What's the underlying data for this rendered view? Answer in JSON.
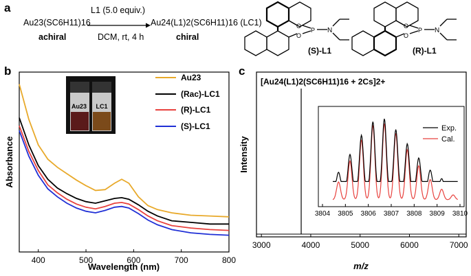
{
  "panel_labels": {
    "a": "a",
    "b": "b",
    "c": "c"
  },
  "reaction": {
    "reagent": "L1 (5.0 equiv.)",
    "conditions": "DCM, rt, 4 h",
    "reactant": "Au23(SC6H11)16",
    "reactant_label": "achiral",
    "product": "Au24(L1)2(SC6H11)16 (LC1)",
    "product_label": "chiral",
    "ligand_S": "(S)-L1",
    "ligand_R": "(R)-L1",
    "atom_labels": [
      "O",
      "O",
      "P",
      "N"
    ]
  },
  "vial_labels": [
    "Au23",
    "LC1"
  ],
  "colors": {
    "au23": "#e8a92a",
    "rac": "#000000",
    "r": "#e8413d",
    "s": "#1f2fd6",
    "calc": "#e8413d",
    "exp": "#000000"
  },
  "chart_data": [
    {
      "type": "line",
      "title": "",
      "xlabel": "Wavelength (nm)",
      "ylabel": "Absorbance",
      "xlim": [
        360,
        800
      ],
      "xticks": [
        400,
        500,
        600,
        700,
        800
      ],
      "yticks_shown": false,
      "legend_position": "top-right",
      "series": [
        {
          "name": "Au23",
          "x": [
            360,
            380,
            400,
            420,
            440,
            460,
            480,
            500,
            520,
            540,
            560,
            575,
            590,
            610,
            630,
            650,
            680,
            720,
            760,
            800
          ],
          "y": [
            2.1,
            1.66,
            1.34,
            1.16,
            1.06,
            0.98,
            0.9,
            0.83,
            0.77,
            0.78,
            0.86,
            0.91,
            0.86,
            0.69,
            0.58,
            0.53,
            0.49,
            0.46,
            0.45,
            0.44
          ]
        },
        {
          "name": "(Rac)-LC1",
          "x": [
            360,
            380,
            400,
            420,
            440,
            460,
            480,
            500,
            520,
            540,
            560,
            575,
            590,
            610,
            630,
            650,
            680,
            720,
            760,
            800
          ],
          "y": [
            1.68,
            1.34,
            1.08,
            0.91,
            0.8,
            0.73,
            0.67,
            0.63,
            0.61,
            0.64,
            0.67,
            0.68,
            0.66,
            0.59,
            0.51,
            0.45,
            0.39,
            0.37,
            0.35,
            0.35
          ]
        },
        {
          "name": "(R)-LC1",
          "x": [
            360,
            380,
            400,
            420,
            440,
            460,
            480,
            500,
            520,
            540,
            560,
            575,
            590,
            610,
            630,
            650,
            680,
            720,
            760,
            800
          ],
          "y": [
            1.58,
            1.26,
            1.02,
            0.84,
            0.74,
            0.66,
            0.6,
            0.56,
            0.54,
            0.57,
            0.61,
            0.62,
            0.6,
            0.53,
            0.45,
            0.39,
            0.33,
            0.3,
            0.28,
            0.27
          ]
        },
        {
          "name": "(S)-LC1",
          "x": [
            360,
            380,
            400,
            420,
            440,
            460,
            480,
            500,
            520,
            540,
            560,
            575,
            590,
            610,
            630,
            650,
            680,
            720,
            760,
            800
          ],
          "y": [
            1.52,
            1.2,
            0.96,
            0.79,
            0.69,
            0.61,
            0.55,
            0.51,
            0.49,
            0.52,
            0.56,
            0.57,
            0.55,
            0.48,
            0.4,
            0.34,
            0.28,
            0.24,
            0.22,
            0.21
          ]
        }
      ]
    },
    {
      "type": "line",
      "title": "",
      "xlabel": "m/z",
      "ylabel": "Intensity",
      "xlim": [
        2900,
        7150
      ],
      "xticks": [
        3000,
        4000,
        5000,
        6000,
        7000
      ],
      "annotation": "[Au24(L1)2(SC6H11)16 + 2Cs]2+",
      "main_peak": {
        "x": 3806.2,
        "relative_intensity": 1.0
      },
      "inset": {
        "xlim": [
          3804,
          3810
        ],
        "xticks": [
          3804,
          3805,
          3806,
          3807,
          3808,
          3809,
          3810
        ],
        "legend_position": "top-right",
        "series": [
          {
            "name": "Exp.",
            "peaks_x": [
              3804.7,
              3805.2,
              3805.7,
              3806.2,
              3806.7,
              3807.2,
              3807.7,
              3808.2,
              3808.7,
              3809.2,
              3809.7
            ],
            "peaks_y": [
              0.25,
              0.5,
              0.77,
              0.96,
              1.0,
              0.85,
              0.65,
              0.45,
              0.28,
              0.16,
              0.09
            ],
            "baseline": 0.12
          },
          {
            "name": "Cal.",
            "peaks_x": [
              3804.7,
              3805.2,
              3805.7,
              3806.2,
              3806.7,
              3807.2,
              3807.7,
              3808.2,
              3808.7,
              3809.2,
              3809.7
            ],
            "peaks_y": [
              0.22,
              0.48,
              0.74,
              0.92,
              0.94,
              0.82,
              0.62,
              0.42,
              0.25,
              0.13,
              0.06
            ],
            "baseline": 0.0
          }
        ]
      }
    }
  ]
}
